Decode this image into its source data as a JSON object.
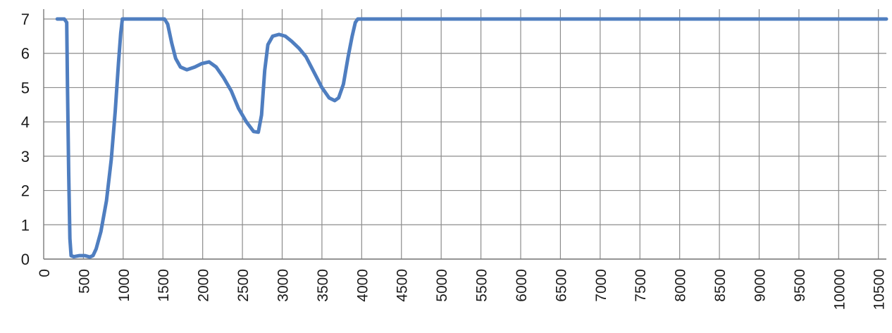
{
  "chart_data": {
    "type": "line",
    "title": "",
    "xlabel": "",
    "ylabel": "",
    "xlim": [
      0,
      10600
    ],
    "ylim": [
      0,
      7
    ],
    "grid": true,
    "x_ticks": [
      0,
      500,
      1000,
      1500,
      2000,
      2500,
      3000,
      3500,
      4000,
      4500,
      5000,
      5500,
      6000,
      6500,
      7000,
      7500,
      8000,
      8500,
      9000,
      9500,
      10000,
      10500
    ],
    "y_ticks": [
      0,
      1,
      2,
      3,
      4,
      5,
      6,
      7
    ],
    "series": [
      {
        "color": "#4f7ec0",
        "points": [
          [
            170,
            7
          ],
          [
            260,
            7
          ],
          [
            290,
            6.9
          ],
          [
            300,
            5.0
          ],
          [
            315,
            2.5
          ],
          [
            330,
            0.6
          ],
          [
            345,
            0.1
          ],
          [
            380,
            0.07
          ],
          [
            450,
            0.1
          ],
          [
            520,
            0.1
          ],
          [
            580,
            0.06
          ],
          [
            620,
            0.1
          ],
          [
            660,
            0.3
          ],
          [
            720,
            0.8
          ],
          [
            790,
            1.7
          ],
          [
            850,
            2.9
          ],
          [
            900,
            4.3
          ],
          [
            940,
            5.7
          ],
          [
            970,
            6.6
          ],
          [
            990,
            7.0
          ],
          [
            1000,
            7
          ],
          [
            1520,
            7
          ],
          [
            1560,
            6.85
          ],
          [
            1610,
            6.3
          ],
          [
            1660,
            5.85
          ],
          [
            1720,
            5.6
          ],
          [
            1800,
            5.52
          ],
          [
            1900,
            5.6
          ],
          [
            1990,
            5.7
          ],
          [
            2080,
            5.75
          ],
          [
            2170,
            5.6
          ],
          [
            2260,
            5.3
          ],
          [
            2360,
            4.9
          ],
          [
            2450,
            4.4
          ],
          [
            2550,
            4.0
          ],
          [
            2640,
            3.72
          ],
          [
            2700,
            3.7
          ],
          [
            2740,
            4.2
          ],
          [
            2780,
            5.5
          ],
          [
            2820,
            6.25
          ],
          [
            2880,
            6.5
          ],
          [
            2960,
            6.55
          ],
          [
            3040,
            6.5
          ],
          [
            3120,
            6.35
          ],
          [
            3210,
            6.15
          ],
          [
            3300,
            5.9
          ],
          [
            3400,
            5.45
          ],
          [
            3500,
            5.0
          ],
          [
            3590,
            4.7
          ],
          [
            3660,
            4.62
          ],
          [
            3710,
            4.7
          ],
          [
            3770,
            5.1
          ],
          [
            3830,
            5.9
          ],
          [
            3880,
            6.5
          ],
          [
            3920,
            6.9
          ],
          [
            3950,
            7.0
          ],
          [
            4000,
            7
          ],
          [
            10600,
            7
          ]
        ]
      }
    ]
  }
}
